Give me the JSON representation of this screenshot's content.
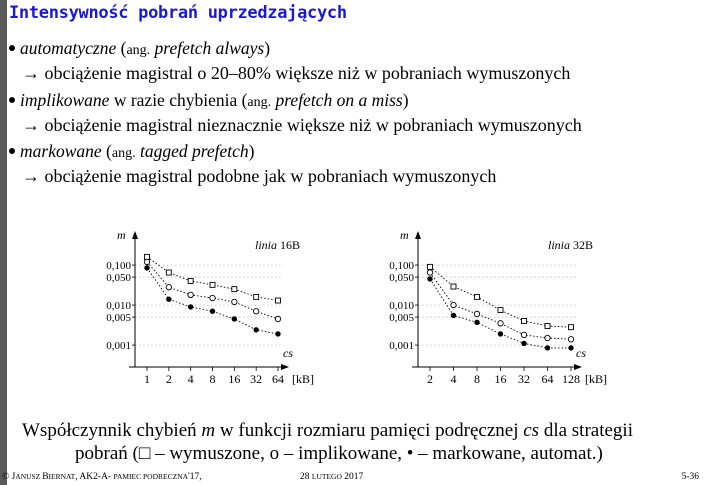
{
  "slide": {
    "title": "Intensywność pobrań uprzedzających",
    "bullets": [
      {
        "term": "automatyczne",
        "pre": " (",
        "ang": "ang.",
        "eng": "prefetch always",
        "post": ")",
        "effect": "→ obciążenie magistral o 20–80% większe niż w pobraniach wymuszonych"
      },
      {
        "term": "implikowane",
        "pre": " w razie chybienia (",
        "ang": "ang.",
        "eng": "prefetch on a miss",
        "post": ")",
        "effect": "→ obciążenie magistral nieznacznie większe niż w pobraniach wymuszonych"
      },
      {
        "term": "markowane",
        "pre": " (",
        "ang": "ang.",
        "eng": "tagged prefetch",
        "post": ")",
        "effect": "→ obciążenie magistral podobne jak w pobraniach wymuszonych"
      }
    ],
    "caption": {
      "line1_a": "Współczynnik chybień ",
      "line1_m": "m",
      "line1_b": "  w funkcji rozmiaru pamięci podręcznej ",
      "line1_cs": "cs",
      "line1_c": "  dla strategii",
      "line2": "pobrań (□ – wymuszone, o – implikowane, • – markowane, automat.)"
    },
    "footer": {
      "copyright": "© ",
      "author_initial": "J",
      "author_rest": "anusz ",
      "surname_initial": "B",
      "surname_rest": "iernat",
      "course": ", AK2-A- ",
      "doc": "pamiec podreczna",
      "year": "'17,",
      "date_num": "28 ",
      "date_month": "lutego",
      "date_year": " 2017",
      "page": "5-36"
    }
  },
  "chart_data": [
    {
      "type": "line",
      "annotation_prefix": "linia",
      "annotation_value": "16B",
      "ylabel": "m",
      "xlabel": "cs",
      "unit": "[kB]",
      "y_scale": "log",
      "y_ticks": [
        {
          "v": 0.1,
          "label": "0,100"
        },
        {
          "v": 0.05,
          "label": "0,050"
        },
        {
          "v": 0.01,
          "label": "0,010"
        },
        {
          "v": 0.005,
          "label": "0,005"
        },
        {
          "v": 0.001,
          "label": "0,001"
        }
      ],
      "ylim": [
        0.0004,
        0.2
      ],
      "categories": [
        "1",
        "2",
        "4",
        "8",
        "16",
        "32",
        "64"
      ],
      "grid": true,
      "series": [
        {
          "marker": "square",
          "values": [
            0.16,
            0.065,
            0.04,
            0.032,
            0.025,
            0.016,
            0.013
          ]
        },
        {
          "marker": "circle",
          "values": [
            0.12,
            0.028,
            0.018,
            0.015,
            0.012,
            0.007,
            0.0045
          ]
        },
        {
          "marker": "dot",
          "values": [
            0.085,
            0.014,
            0.009,
            0.007,
            0.0045,
            0.0024,
            0.0019
          ]
        }
      ]
    },
    {
      "type": "line",
      "annotation_prefix": "linia",
      "annotation_value": "32B",
      "ylabel": "m",
      "xlabel": "cs",
      "unit": "[kB]",
      "y_scale": "log",
      "y_ticks": [
        {
          "v": 0.1,
          "label": "0,100"
        },
        {
          "v": 0.05,
          "label": "0,050"
        },
        {
          "v": 0.01,
          "label": "0,010"
        },
        {
          "v": 0.005,
          "label": "0,005"
        },
        {
          "v": 0.001,
          "label": "0,001"
        }
      ],
      "ylim": [
        0.0004,
        0.2
      ],
      "categories": [
        "2",
        "4",
        "8",
        "16",
        "32",
        "64",
        "128"
      ],
      "grid": true,
      "series": [
        {
          "marker": "square",
          "values": [
            0.09,
            0.029,
            0.016,
            0.0075,
            0.004,
            0.003,
            0.0028
          ]
        },
        {
          "marker": "circle",
          "values": [
            0.065,
            0.01,
            0.006,
            0.0035,
            0.0018,
            0.0015,
            0.0014
          ]
        },
        {
          "marker": "dot",
          "values": [
            0.045,
            0.0055,
            0.0037,
            0.0019,
            0.0011,
            0.00085,
            0.00085
          ]
        }
      ]
    }
  ]
}
